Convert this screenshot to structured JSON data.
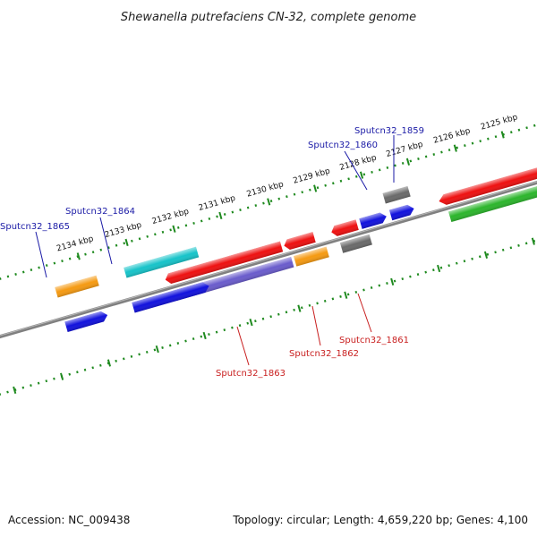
{
  "title": "Shewanella putrefaciens CN-32, complete genome",
  "footer": {
    "accession": "Accession: NC_009438",
    "summary": "Topology: circular; Length: 4,659,220 bp; Genes: 4,100"
  },
  "colors": {
    "backbone": "#7a7a7a",
    "tick": "#1f8a1f",
    "label_forward": "#1a1aa6",
    "label_reverse": "#c81e1e",
    "red": "#ee1111",
    "blue": "#1212dd",
    "cyan": "#17c3c9",
    "orange": "#f59a12",
    "gray": "#6a6a6a",
    "green": "#2cb52c",
    "purple": "#6a5ccc"
  },
  "ticks": [
    "2125 kbp",
    "2126 kbp",
    "2127 kbp",
    "2128 kbp",
    "2129 kbp",
    "2130 kbp",
    "2131 kbp",
    "2132 kbp",
    "2133 kbp",
    "2134 kbp"
  ],
  "gene_labels": {
    "s1859": "Sputcn32_1859",
    "s1860": "Sputcn32_1860",
    "s1861": "Sputcn32_1861",
    "s1862": "Sputcn32_1862",
    "s1863": "Sputcn32_1863",
    "s1864": "Sputcn32_1864",
    "s1865": "Sputcn32_1865"
  }
}
